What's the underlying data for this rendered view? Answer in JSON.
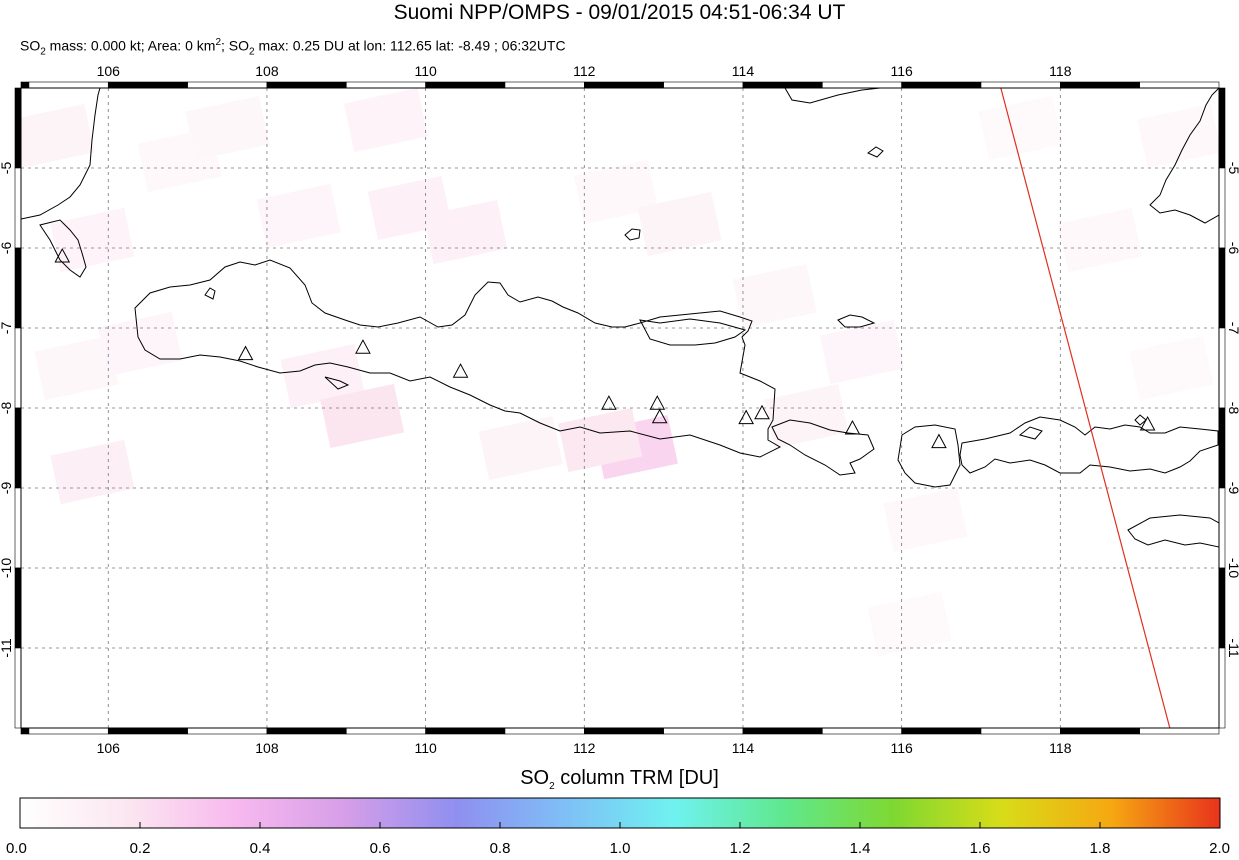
{
  "header": {
    "title": "Suomi NPP/OMPS - 09/01/2015 04:51-06:34 UT",
    "stats": {
      "so2_mass_label": "SO",
      "so2_mass_rest": " mass: 0.000 kt; Area: 0 km",
      "area_sup": "2",
      "so2_max_label": "; SO",
      "so2_max_rest": " max: 0.25 DU at lon: 112.65 lat: -8.49 ; 06:32UTC",
      "sub2": "2"
    }
  },
  "map": {
    "lon_range": [
      104.9,
      120.0
    ],
    "lat_range": [
      -12.0,
      -4.0
    ],
    "lon_ticks": [
      "106",
      "108",
      "110",
      "112",
      "114",
      "116",
      "118"
    ],
    "lat_ticks": [
      "-5",
      "-6",
      "-7",
      "-8",
      "-9",
      "-10",
      "-11"
    ],
    "grid": true,
    "grid_style": "dashed",
    "volcano_marker": "triangle-icon",
    "volcanoes": [
      {
        "lon": 105.42,
        "lat": -6.1
      },
      {
        "lon": 107.73,
        "lat": -7.32
      },
      {
        "lon": 109.21,
        "lat": -7.24
      },
      {
        "lon": 110.44,
        "lat": -7.54
      },
      {
        "lon": 112.31,
        "lat": -7.94
      },
      {
        "lon": 112.92,
        "lat": -7.94
      },
      {
        "lon": 112.95,
        "lat": -8.11
      },
      {
        "lon": 114.04,
        "lat": -8.12
      },
      {
        "lon": 114.24,
        "lat": -8.06
      },
      {
        "lon": 115.38,
        "lat": -8.25
      },
      {
        "lon": 116.47,
        "lat": -8.42
      },
      {
        "lon": 119.1,
        "lat": -8.2
      }
    ],
    "orbit_track": {
      "color": "#e03020",
      "from": {
        "lon": 117.25,
        "lat": -4.0
      },
      "to": {
        "lon": 119.38,
        "lat": -12.0
      }
    }
  },
  "colorbar": {
    "title_prefix": "SO",
    "title_sub": "2",
    "title_suffix": " column TRM [DU]",
    "ticks": [
      "0.0",
      "0.2",
      "0.4",
      "0.6",
      "0.8",
      "1.0",
      "1.2",
      "1.4",
      "1.6",
      "1.8",
      "2.0"
    ],
    "range": [
      0.0,
      2.0
    ],
    "colors": [
      "#ffffff",
      "#fbe6f0",
      "#f7b8ee",
      "#d59ee8",
      "#8f8ff0",
      "#7fbff6",
      "#6ff2f0",
      "#5fe88e",
      "#7ed832",
      "#d8dc18",
      "#f6a812",
      "#e8331b"
    ]
  },
  "chart_data": {
    "type": "heatmap",
    "title": "Suomi NPP/OMPS - 09/01/2015 04:51-06:34 UT",
    "value_label": "SO2 column TRM [DU]",
    "xlabel": "",
    "ylabel": "",
    "xlim": [
      104.9,
      120.0
    ],
    "ylim": [
      -12.0,
      -4.0
    ],
    "clim": [
      0.0,
      2.0
    ],
    "max_value": 0.25,
    "max_location": {
      "lon": 112.65,
      "lat": -8.49
    },
    "pixels": [
      {
        "lon": 105.3,
        "lat": -4.6,
        "value": 0.08
      },
      {
        "lon": 105.8,
        "lat": -5.9,
        "value": 0.09
      },
      {
        "lon": 105.6,
        "lat": -7.5,
        "value": 0.06
      },
      {
        "lon": 105.8,
        "lat": -8.8,
        "value": 0.12
      },
      {
        "lon": 106.9,
        "lat": -4.9,
        "value": 0.05
      },
      {
        "lon": 106.4,
        "lat": -7.2,
        "value": 0.07
      },
      {
        "lon": 107.5,
        "lat": -4.5,
        "value": 0.06
      },
      {
        "lon": 108.4,
        "lat": -5.6,
        "value": 0.07
      },
      {
        "lon": 109.5,
        "lat": -4.4,
        "value": 0.09
      },
      {
        "lon": 109.8,
        "lat": -5.5,
        "value": 0.1
      },
      {
        "lon": 108.7,
        "lat": -7.6,
        "value": 0.1
      },
      {
        "lon": 109.2,
        "lat": -8.1,
        "value": 0.18
      },
      {
        "lon": 110.5,
        "lat": -5.8,
        "value": 0.11
      },
      {
        "lon": 111.2,
        "lat": -8.5,
        "value": 0.08
      },
      {
        "lon": 112.65,
        "lat": -8.49,
        "value": 0.25
      },
      {
        "lon": 112.2,
        "lat": -8.4,
        "value": 0.17
      },
      {
        "lon": 112.4,
        "lat": -5.3,
        "value": 0.05
      },
      {
        "lon": 113.2,
        "lat": -5.7,
        "value": 0.08
      },
      {
        "lon": 114.4,
        "lat": -6.6,
        "value": 0.06
      },
      {
        "lon": 114.8,
        "lat": -8.1,
        "value": 0.08
      },
      {
        "lon": 115.5,
        "lat": -7.3,
        "value": 0.07
      },
      {
        "lon": 116.3,
        "lat": -9.4,
        "value": 0.05
      },
      {
        "lon": 116.1,
        "lat": -10.7,
        "value": 0.04
      },
      {
        "lon": 117.5,
        "lat": -4.5,
        "value": 0.04
      },
      {
        "lon": 118.5,
        "lat": -5.9,
        "value": 0.05
      },
      {
        "lon": 119.4,
        "lat": -7.5,
        "value": 0.04
      },
      {
        "lon": 119.5,
        "lat": -4.6,
        "value": 0.05
      }
    ]
  }
}
